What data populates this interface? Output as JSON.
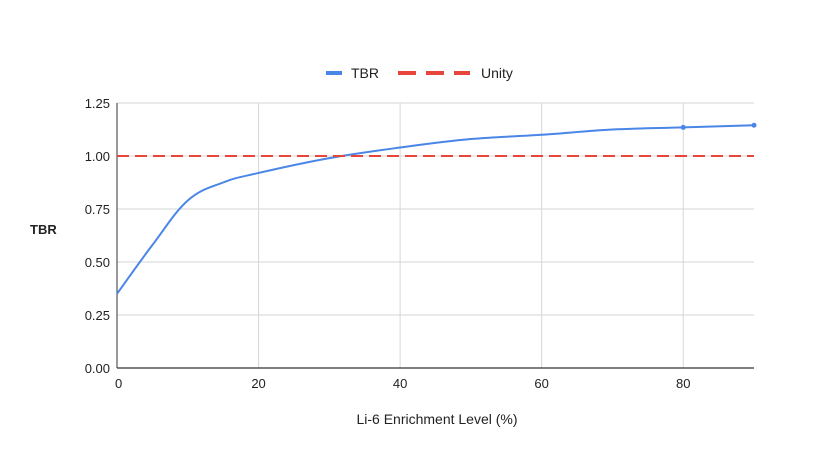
{
  "chart_data": {
    "type": "line",
    "title": "",
    "xlabel": "Li-6 Enrichment Level (%)",
    "ylabel": "TBR",
    "xlim": [
      0,
      90
    ],
    "ylim": [
      0,
      1.25
    ],
    "x_ticks": [
      0,
      20,
      40,
      60,
      80
    ],
    "y_ticks": [
      0.0,
      0.25,
      0.5,
      0.75,
      1.0,
      1.25
    ],
    "x_tick_labels": [
      "0",
      "20",
      "40",
      "60",
      "80"
    ],
    "y_tick_labels": [
      "0.00",
      "0.25",
      "0.50",
      "0.75",
      "1.00",
      "1.25"
    ],
    "grid": true,
    "legend_position": "top-center",
    "series": [
      {
        "name": "TBR",
        "color": "#4a86e8",
        "style": "solid-smooth",
        "x": [
          0,
          5,
          10,
          15,
          20,
          30,
          40,
          50,
          60,
          70,
          80,
          90
        ],
        "y": [
          0.35,
          0.58,
          0.79,
          0.875,
          0.92,
          0.99,
          1.04,
          1.08,
          1.1,
          1.125,
          1.135,
          1.145
        ],
        "markers_at_x": [
          80,
          90
        ]
      },
      {
        "name": "Unity",
        "color": "#e8453c",
        "style": "dashed",
        "x": [
          0,
          90
        ],
        "y": [
          1.0,
          1.0
        ]
      }
    ]
  }
}
